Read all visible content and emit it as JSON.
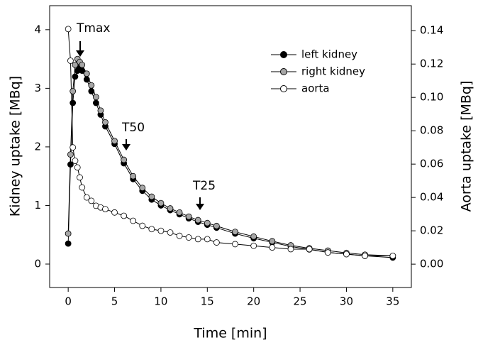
{
  "chart_data": {
    "type": "line",
    "x_label": "Time [min]",
    "y_label": "Kidney uptake [MBq]",
    "y2_label": "Aorta uptake [MBq]",
    "x": [
      0,
      0.25,
      0.5,
      0.75,
      1,
      1.25,
      1.5,
      2,
      2.5,
      3,
      3.5,
      4,
      5,
      6,
      7,
      8,
      9,
      10,
      11,
      12,
      13,
      14,
      15,
      16,
      18,
      20,
      22,
      24,
      26,
      28,
      30,
      32,
      35
    ],
    "series": [
      {
        "name": "left kidney",
        "color": "#000000",
        "values": [
          0.35,
          1.7,
          2.75,
          3.2,
          3.3,
          3.35,
          3.3,
          3.15,
          2.95,
          2.75,
          2.55,
          2.35,
          2.05,
          1.72,
          1.45,
          1.25,
          1.1,
          1.0,
          0.92,
          0.85,
          0.78,
          0.72,
          0.67,
          0.62,
          0.52,
          0.44,
          0.37,
          0.3,
          0.25,
          0.2,
          0.17,
          0.14,
          0.11
        ]
      },
      {
        "name": "right kidney",
        "color": "#a6a6a6",
        "values": [
          0.52,
          1.87,
          2.95,
          3.4,
          3.5,
          3.45,
          3.4,
          3.25,
          3.05,
          2.85,
          2.62,
          2.42,
          2.1,
          1.78,
          1.5,
          1.3,
          1.15,
          1.04,
          0.95,
          0.88,
          0.81,
          0.75,
          0.7,
          0.65,
          0.55,
          0.47,
          0.39,
          0.32,
          0.27,
          0.23,
          0.19,
          0.16,
          0.14
        ]
      },
      {
        "name": "aorta",
        "color": "#ffffff",
        "axis": "y2",
        "values": [
          0.141,
          0.122,
          0.07,
          0.062,
          0.058,
          0.052,
          0.046,
          0.04,
          0.038,
          0.035,
          0.034,
          0.033,
          0.031,
          0.029,
          0.026,
          0.023,
          0.021,
          0.02,
          0.019,
          0.017,
          0.016,
          0.015,
          0.015,
          0.013,
          0.012,
          0.011,
          0.01,
          0.009,
          0.009,
          0.007,
          0.006,
          0.005,
          0.005
        ]
      }
    ],
    "xlim": [
      -2,
      37
    ],
    "xticks": [
      0,
      5,
      10,
      15,
      20,
      25,
      30,
      35
    ],
    "ylim": [
      -0.4,
      4.41
    ],
    "yticks": [
      0,
      1,
      2,
      3,
      4
    ],
    "y2lim": [
      -0.014,
      0.155
    ],
    "y2ticks": [
      {
        "value": 0,
        "label": "0.00"
      },
      {
        "value": 0.02,
        "label": "0.02"
      },
      {
        "value": 0.04,
        "label": "0.04"
      },
      {
        "value": 0.06,
        "label": "0.06"
      },
      {
        "value": 0.08,
        "label": "0.08"
      },
      {
        "value": 0.1,
        "label": "0.10"
      },
      {
        "value": 0.12,
        "label": "0.12"
      },
      {
        "value": 0.14,
        "label": "0.14"
      }
    ],
    "annotations": [
      "Tmax",
      "T50",
      "T25"
    ],
    "legend": "upper right"
  }
}
